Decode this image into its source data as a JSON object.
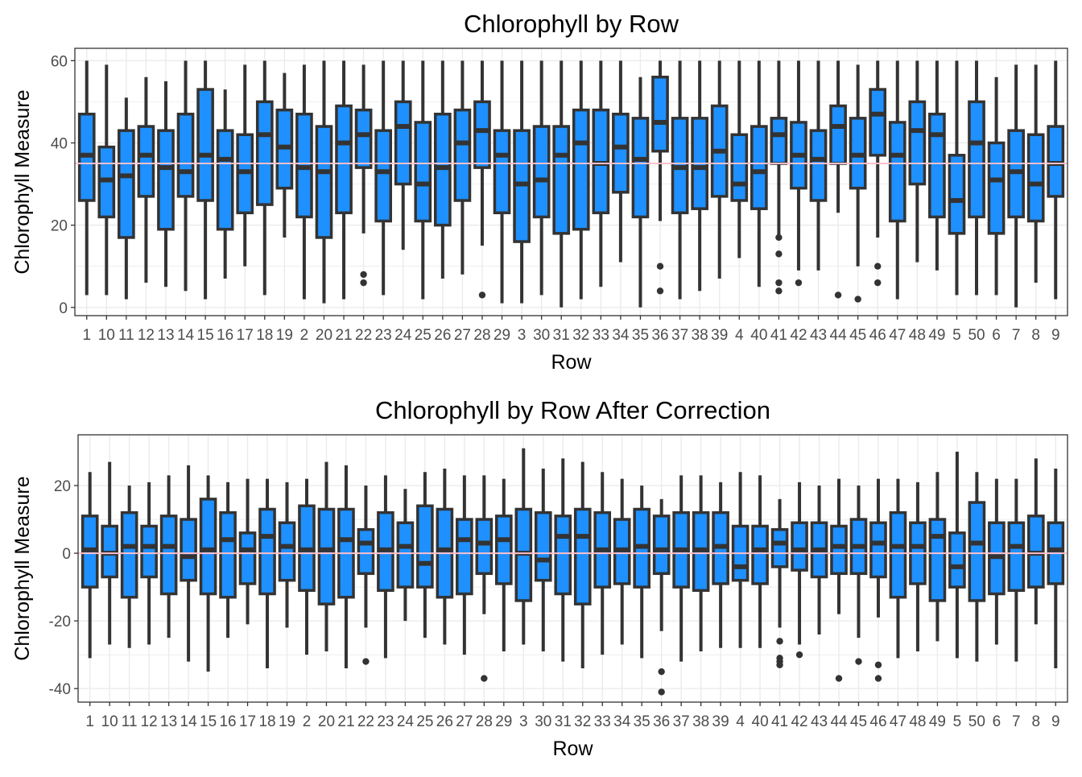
{
  "colors": {
    "box_fill": "#1E90FF",
    "box_line": "#333333",
    "reference_line": "#FFC0CB",
    "grid": "#EBEBEB",
    "panel_border": "#333333",
    "text": "#000000",
    "tick_text": "#4D4D4D"
  },
  "chart_data": [
    {
      "type": "boxplot",
      "title": "Chlorophyll by Row",
      "xlabel": "Row",
      "ylabel": "Chlorophyll Measure",
      "ylim": [
        -2,
        63
      ],
      "yticks": [
        0,
        20,
        40,
        60
      ],
      "reference_line": 35,
      "grid": true,
      "categories": [
        "1",
        "10",
        "11",
        "12",
        "13",
        "14",
        "15",
        "16",
        "17",
        "18",
        "19",
        "2",
        "20",
        "21",
        "22",
        "23",
        "24",
        "25",
        "26",
        "27",
        "28",
        "29",
        "3",
        "30",
        "31",
        "32",
        "33",
        "34",
        "35",
        "36",
        "37",
        "38",
        "39",
        "4",
        "40",
        "41",
        "42",
        "43",
        "44",
        "45",
        "46",
        "47",
        "48",
        "49",
        "5",
        "50",
        "6",
        "7",
        "8",
        "9"
      ],
      "boxes": [
        {
          "low": 3,
          "q1": 26,
          "median": 37,
          "q3": 47,
          "high": 60,
          "outliers": []
        },
        {
          "low": 3,
          "q1": 22,
          "median": 31,
          "q3": 39,
          "high": 59,
          "outliers": []
        },
        {
          "low": 2,
          "q1": 17,
          "median": 32,
          "q3": 43,
          "high": 51,
          "outliers": []
        },
        {
          "low": 6,
          "q1": 27,
          "median": 37,
          "q3": 44,
          "high": 56,
          "outliers": []
        },
        {
          "low": 5,
          "q1": 19,
          "median": 34,
          "q3": 43,
          "high": 55,
          "outliers": []
        },
        {
          "low": 4,
          "q1": 27,
          "median": 33,
          "q3": 47,
          "high": 60,
          "outliers": []
        },
        {
          "low": 2,
          "q1": 26,
          "median": 37,
          "q3": 53,
          "high": 60,
          "outliers": []
        },
        {
          "low": 7,
          "q1": 19,
          "median": 36,
          "q3": 43,
          "high": 53,
          "outliers": []
        },
        {
          "low": 10,
          "q1": 23,
          "median": 33,
          "q3": 42,
          "high": 59,
          "outliers": []
        },
        {
          "low": 3,
          "q1": 25,
          "median": 42,
          "q3": 50,
          "high": 60,
          "outliers": []
        },
        {
          "low": 17,
          "q1": 29,
          "median": 39,
          "q3": 48,
          "high": 57,
          "outliers": []
        },
        {
          "low": 2,
          "q1": 22,
          "median": 34,
          "q3": 47,
          "high": 59,
          "outliers": []
        },
        {
          "low": 1,
          "q1": 17,
          "median": 33,
          "q3": 44,
          "high": 60,
          "outliers": []
        },
        {
          "low": 2,
          "q1": 23,
          "median": 40,
          "q3": 49,
          "high": 60,
          "outliers": []
        },
        {
          "low": 18,
          "q1": 34,
          "median": 42,
          "q3": 48,
          "high": 59,
          "outliers": [
            8,
            6
          ]
        },
        {
          "low": 3,
          "q1": 21,
          "median": 33,
          "q3": 43,
          "high": 60,
          "outliers": []
        },
        {
          "low": 14,
          "q1": 30,
          "median": 44,
          "q3": 50,
          "high": 60,
          "outliers": []
        },
        {
          "low": 2,
          "q1": 21,
          "median": 30,
          "q3": 45,
          "high": 60,
          "outliers": []
        },
        {
          "low": 7,
          "q1": 20,
          "median": 34,
          "q3": 47,
          "high": 60,
          "outliers": []
        },
        {
          "low": 8,
          "q1": 26,
          "median": 40,
          "q3": 48,
          "high": 60,
          "outliers": []
        },
        {
          "low": 15,
          "q1": 34,
          "median": 43,
          "q3": 50,
          "high": 60,
          "outliers": [
            3
          ]
        },
        {
          "low": 1,
          "q1": 23,
          "median": 37,
          "q3": 43,
          "high": 60,
          "outliers": []
        },
        {
          "low": 1,
          "q1": 16,
          "median": 30,
          "q3": 43,
          "high": 60,
          "outliers": []
        },
        {
          "low": 3,
          "q1": 22,
          "median": 31,
          "q3": 44,
          "high": 60,
          "outliers": []
        },
        {
          "low": 0,
          "q1": 18,
          "median": 37,
          "q3": 44,
          "high": 60,
          "outliers": []
        },
        {
          "low": 2,
          "q1": 19,
          "median": 40,
          "q3": 48,
          "high": 60,
          "outliers": []
        },
        {
          "low": 5,
          "q1": 23,
          "median": 35,
          "q3": 48,
          "high": 60,
          "outliers": []
        },
        {
          "low": 11,
          "q1": 28,
          "median": 39,
          "q3": 47,
          "high": 60,
          "outliers": []
        },
        {
          "low": 0,
          "q1": 22,
          "median": 36,
          "q3": 46,
          "high": 56,
          "outliers": []
        },
        {
          "low": 21,
          "q1": 38,
          "median": 45,
          "q3": 56,
          "high": 60,
          "outliers": [
            10,
            4
          ]
        },
        {
          "low": 2,
          "q1": 23,
          "median": 34,
          "q3": 46,
          "high": 60,
          "outliers": []
        },
        {
          "low": 4,
          "q1": 24,
          "median": 34,
          "q3": 46,
          "high": 60,
          "outliers": []
        },
        {
          "low": 7,
          "q1": 27,
          "median": 38,
          "q3": 49,
          "high": 60,
          "outliers": []
        },
        {
          "low": 12,
          "q1": 26,
          "median": 30,
          "q3": 42,
          "high": 60,
          "outliers": []
        },
        {
          "low": 5,
          "q1": 24,
          "median": 33,
          "q3": 44,
          "high": 60,
          "outliers": []
        },
        {
          "low": 17,
          "q1": 35,
          "median": 42,
          "q3": 46,
          "high": 60,
          "outliers": [
            17,
            13,
            6,
            4
          ]
        },
        {
          "low": 9,
          "q1": 29,
          "median": 37,
          "q3": 45,
          "high": 60,
          "outliers": [
            6
          ]
        },
        {
          "low": 9,
          "q1": 26,
          "median": 36,
          "q3": 43,
          "high": 60,
          "outliers": []
        },
        {
          "low": 23,
          "q1": 35,
          "median": 44,
          "q3": 49,
          "high": 60,
          "outliers": [
            3
          ]
        },
        {
          "low": 10,
          "q1": 29,
          "median": 37,
          "q3": 46,
          "high": 59,
          "outliers": [
            2
          ]
        },
        {
          "low": 17,
          "q1": 37,
          "median": 47,
          "q3": 53,
          "high": 60,
          "outliers": [
            10,
            6
          ]
        },
        {
          "low": 2,
          "q1": 21,
          "median": 37,
          "q3": 45,
          "high": 60,
          "outliers": []
        },
        {
          "low": 11,
          "q1": 30,
          "median": 43,
          "q3": 50,
          "high": 60,
          "outliers": []
        },
        {
          "low": 9,
          "q1": 22,
          "median": 42,
          "q3": 47,
          "high": 60,
          "outliers": []
        },
        {
          "low": 3,
          "q1": 18,
          "median": 26,
          "q3": 37,
          "high": 60,
          "outliers": []
        },
        {
          "low": 3,
          "q1": 22,
          "median": 40,
          "q3": 50,
          "high": 60,
          "outliers": []
        },
        {
          "low": 3,
          "q1": 18,
          "median": 31,
          "q3": 40,
          "high": 56,
          "outliers": []
        },
        {
          "low": 0,
          "q1": 22,
          "median": 33,
          "q3": 43,
          "high": 59,
          "outliers": []
        },
        {
          "low": 6,
          "q1": 21,
          "median": 30,
          "q3": 42,
          "high": 59,
          "outliers": []
        },
        {
          "low": 2,
          "q1": 27,
          "median": 35,
          "q3": 44,
          "high": 60,
          "outliers": []
        }
      ]
    },
    {
      "type": "boxplot",
      "title": "Chlorophyll by Row After Correction",
      "xlabel": "Row",
      "ylabel": "Chlorophyll Measure",
      "ylim": [
        -44,
        35
      ],
      "yticks": [
        -40,
        -20,
        0,
        20
      ],
      "reference_line": 0,
      "grid": true,
      "categories": [
        "1",
        "10",
        "11",
        "12",
        "13",
        "14",
        "15",
        "16",
        "17",
        "18",
        "19",
        "2",
        "20",
        "21",
        "22",
        "23",
        "24",
        "25",
        "26",
        "27",
        "28",
        "29",
        "3",
        "30",
        "31",
        "32",
        "33",
        "34",
        "35",
        "36",
        "37",
        "38",
        "39",
        "4",
        "40",
        "41",
        "42",
        "43",
        "44",
        "45",
        "46",
        "47",
        "48",
        "49",
        "5",
        "50",
        "6",
        "7",
        "8",
        "9"
      ],
      "boxes": [
        {
          "low": -31,
          "q1": -10,
          "median": 1,
          "q3": 11,
          "high": 24,
          "outliers": []
        },
        {
          "low": -27,
          "q1": -7,
          "median": 0,
          "q3": 8,
          "high": 27,
          "outliers": []
        },
        {
          "low": -28,
          "q1": -13,
          "median": 2,
          "q3": 12,
          "high": 20,
          "outliers": []
        },
        {
          "low": -27,
          "q1": -7,
          "median": 2,
          "q3": 8,
          "high": 21,
          "outliers": []
        },
        {
          "low": -25,
          "q1": -12,
          "median": 2,
          "q3": 11,
          "high": 23,
          "outliers": []
        },
        {
          "low": -32,
          "q1": -8,
          "median": -1,
          "q3": 10,
          "high": 26,
          "outliers": []
        },
        {
          "low": -35,
          "q1": -12,
          "median": 1,
          "q3": 16,
          "high": 23,
          "outliers": []
        },
        {
          "low": -25,
          "q1": -13,
          "median": 4,
          "q3": 12,
          "high": 21,
          "outliers": []
        },
        {
          "low": -21,
          "q1": -9,
          "median": 1,
          "q3": 6,
          "high": 22,
          "outliers": []
        },
        {
          "low": -34,
          "q1": -12,
          "median": 5,
          "q3": 13,
          "high": 22,
          "outliers": []
        },
        {
          "low": -22,
          "q1": -8,
          "median": 2,
          "q3": 9,
          "high": 21,
          "outliers": []
        },
        {
          "low": -30,
          "q1": -11,
          "median": 1,
          "q3": 14,
          "high": 22,
          "outliers": []
        },
        {
          "low": -29,
          "q1": -15,
          "median": 1,
          "q3": 13,
          "high": 27,
          "outliers": []
        },
        {
          "low": -34,
          "q1": -13,
          "median": 4,
          "q3": 13,
          "high": 26,
          "outliers": []
        },
        {
          "low": -22,
          "q1": -6,
          "median": 3,
          "q3": 7,
          "high": 20,
          "outliers": [
            -32
          ]
        },
        {
          "low": -31,
          "q1": -11,
          "median": 1,
          "q3": 12,
          "high": 23,
          "outliers": []
        },
        {
          "low": -20,
          "q1": -10,
          "median": 2,
          "q3": 9,
          "high": 19,
          "outliers": []
        },
        {
          "low": -25,
          "q1": -10,
          "median": -3,
          "q3": 14,
          "high": 24,
          "outliers": []
        },
        {
          "low": -27,
          "q1": -13,
          "median": 1,
          "q3": 13,
          "high": 25,
          "outliers": []
        },
        {
          "low": -30,
          "q1": -12,
          "median": 4,
          "q3": 10,
          "high": 23,
          "outliers": []
        },
        {
          "low": -18,
          "q1": -6,
          "median": 3,
          "q3": 10,
          "high": 23,
          "outliers": [
            -37
          ]
        },
        {
          "low": -29,
          "q1": -9,
          "median": 4,
          "q3": 11,
          "high": 22,
          "outliers": []
        },
        {
          "low": -27,
          "q1": -14,
          "median": 0,
          "q3": 13,
          "high": 31,
          "outliers": []
        },
        {
          "low": -29,
          "q1": -8,
          "median": -2,
          "q3": 12,
          "high": 25,
          "outliers": []
        },
        {
          "low": -32,
          "q1": -12,
          "median": 5,
          "q3": 11,
          "high": 28,
          "outliers": []
        },
        {
          "low": -34,
          "q1": -15,
          "median": 5,
          "q3": 13,
          "high": 27,
          "outliers": []
        },
        {
          "low": -30,
          "q1": -10,
          "median": 1,
          "q3": 12,
          "high": 24,
          "outliers": []
        },
        {
          "low": -27,
          "q1": -9,
          "median": 1,
          "q3": 10,
          "high": 22,
          "outliers": []
        },
        {
          "low": -31,
          "q1": -10,
          "median": 2,
          "q3": 13,
          "high": 20,
          "outliers": []
        },
        {
          "low": -23,
          "q1": -6,
          "median": 1,
          "q3": 11,
          "high": 16,
          "outliers": [
            -35,
            -41
          ]
        },
        {
          "low": -32,
          "q1": -10,
          "median": 1,
          "q3": 12,
          "high": 23,
          "outliers": []
        },
        {
          "low": -29,
          "q1": -11,
          "median": 1,
          "q3": 12,
          "high": 23,
          "outliers": []
        },
        {
          "low": -28,
          "q1": -9,
          "median": 2,
          "q3": 12,
          "high": 21,
          "outliers": []
        },
        {
          "low": -28,
          "q1": -8,
          "median": -4,
          "q3": 8,
          "high": 24,
          "outliers": []
        },
        {
          "low": -28,
          "q1": -9,
          "median": 1,
          "q3": 8,
          "high": 23,
          "outliers": []
        },
        {
          "low": -22,
          "q1": -4,
          "median": 3,
          "q3": 7,
          "high": 16,
          "outliers": [
            -26,
            -31,
            -32,
            -33
          ]
        },
        {
          "low": -27,
          "q1": -5,
          "median": 1,
          "q3": 9,
          "high": 21,
          "outliers": [
            -30
          ]
        },
        {
          "low": -24,
          "q1": -7,
          "median": 1,
          "q3": 9,
          "high": 20,
          "outliers": []
        },
        {
          "low": -18,
          "q1": -6,
          "median": 2,
          "q3": 8,
          "high": 22,
          "outliers": [
            -37
          ]
        },
        {
          "low": -25,
          "q1": -6,
          "median": 2,
          "q3": 10,
          "high": 20,
          "outliers": [
            -32
          ]
        },
        {
          "low": -19,
          "q1": -7,
          "median": 3,
          "q3": 9,
          "high": 22,
          "outliers": [
            -33,
            -37
          ]
        },
        {
          "low": -31,
          "q1": -13,
          "median": 2,
          "q3": 12,
          "high": 22,
          "outliers": []
        },
        {
          "low": -29,
          "q1": -9,
          "median": 2,
          "q3": 9,
          "high": 21,
          "outliers": []
        },
        {
          "low": -26,
          "q1": -14,
          "median": 5,
          "q3": 10,
          "high": 24,
          "outliers": []
        },
        {
          "low": -31,
          "q1": -10,
          "median": -4,
          "q3": 6,
          "high": 30,
          "outliers": []
        },
        {
          "low": -32,
          "q1": -14,
          "median": 3,
          "q3": 15,
          "high": 24,
          "outliers": []
        },
        {
          "low": -27,
          "q1": -12,
          "median": -1,
          "q3": 9,
          "high": 22,
          "outliers": []
        },
        {
          "low": -32,
          "q1": -11,
          "median": 2,
          "q3": 9,
          "high": 22,
          "outliers": []
        },
        {
          "low": -21,
          "q1": -10,
          "median": 0,
          "q3": 11,
          "high": 28,
          "outliers": []
        },
        {
          "low": -34,
          "q1": -9,
          "median": 1,
          "q3": 9,
          "high": 25,
          "outliers": []
        }
      ]
    }
  ]
}
